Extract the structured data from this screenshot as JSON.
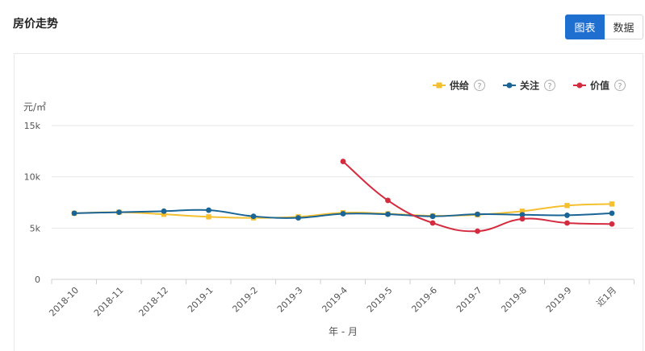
{
  "header": {
    "title": "房价走势"
  },
  "toggle": {
    "chart_label": "图表",
    "data_label": "数据"
  },
  "colors": {
    "supply": "#f5c02f",
    "attention": "#1a6496",
    "value": "#d52b3f",
    "accent": "#1f6fd1"
  },
  "chart_data": {
    "type": "line",
    "title": "",
    "xlabel": "年 - 月",
    "ylabel": "元/㎡",
    "ylim": [
      0,
      15000
    ],
    "yticks": [
      0,
      5000,
      10000,
      15000
    ],
    "ytick_labels": [
      "0",
      "5k",
      "10k",
      "15k"
    ],
    "grid": true,
    "legend_position": "top-right",
    "legend_help_icon": "?",
    "categories": [
      "2018-10",
      "2018-11",
      "2018-12",
      "2019-1",
      "2019-2",
      "2019-3",
      "2019-4",
      "2019-5",
      "2019-6",
      "2019-7",
      "2019-8",
      "2019-9",
      "近1月"
    ],
    "series": [
      {
        "name": "供给",
        "color": "#f5c02f",
        "marker": "square",
        "values": [
          6450,
          6550,
          6350,
          6100,
          6000,
          6100,
          6500,
          6400,
          6200,
          6300,
          6650,
          7200,
          7350
        ]
      },
      {
        "name": "关注",
        "color": "#1a6496",
        "marker": "circle",
        "values": [
          6450,
          6550,
          6650,
          6750,
          6150,
          6000,
          6400,
          6350,
          6150,
          6350,
          6300,
          6250,
          6450
        ]
      },
      {
        "name": "价值",
        "color": "#d52b3f",
        "marker": "circle",
        "values": [
          null,
          null,
          null,
          null,
          null,
          null,
          11500,
          7700,
          5500,
          4700,
          5900,
          5500,
          5400
        ]
      }
    ]
  }
}
